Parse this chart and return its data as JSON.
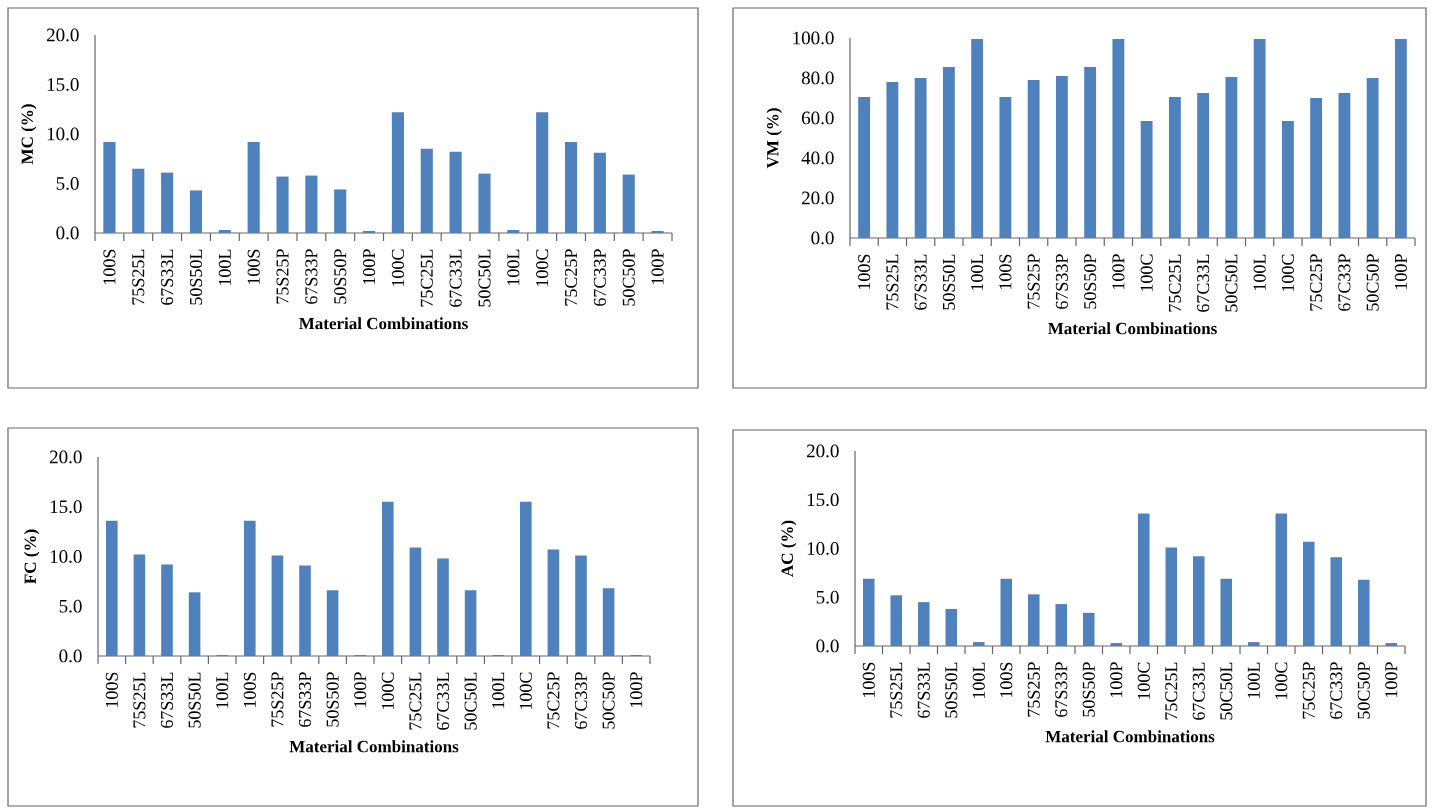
{
  "chart_data": [
    {
      "type": "bar",
      "xlabel": "Material Combinations",
      "ylabel": "MC (%)",
      "color": "#4f81bd",
      "categories": [
        "100S",
        "75S25L",
        "67S33L",
        "50S50L",
        "100L",
        "100S",
        "75S25P",
        "67S33P",
        "50S50P",
        "100P",
        "100C",
        "75C25L",
        "67C33L",
        "50C50L",
        "100L",
        "100C",
        "75C25P",
        "67C33P",
        "50C50P",
        "100P"
      ],
      "values": [
        9.2,
        6.5,
        6.1,
        4.3,
        0.3,
        9.2,
        5.7,
        5.8,
        4.4,
        0.2,
        12.2,
        8.5,
        8.2,
        6.0,
        0.3,
        12.2,
        9.2,
        8.1,
        5.9,
        0.2
      ],
      "ylim": [
        0,
        20
      ],
      "yticks": [
        {
          "value": 0,
          "label": "0.0"
        },
        {
          "value": 5,
          "label": "5.0"
        },
        {
          "value": 10,
          "label": "10.0"
        },
        {
          "value": 15,
          "label": "15.0"
        },
        {
          "value": 20,
          "label": "20.0"
        }
      ]
    },
    {
      "type": "bar",
      "xlabel": "Material Combinations",
      "ylabel": "VM (%)",
      "color": "#4f81bd",
      "categories": [
        "100S",
        "75S25L",
        "67S33L",
        "50S50L",
        "100L",
        "100S",
        "75S25P",
        "67S33P",
        "50S50P",
        "100P",
        "100C",
        "75C25L",
        "67C33L",
        "50C50L",
        "100L",
        "100C",
        "75C25P",
        "67C33P",
        "50C50P",
        "100P"
      ],
      "values": [
        70.5,
        78,
        80,
        85.5,
        99.5,
        70.5,
        79,
        81,
        85.5,
        99.5,
        58.5,
        70.5,
        72.5,
        80.5,
        99.5,
        58.5,
        70,
        72.5,
        80,
        99.5
      ],
      "ylim": [
        0,
        100
      ],
      "yticks": [
        {
          "value": 0,
          "label": "0.0"
        },
        {
          "value": 20,
          "label": "20.0"
        },
        {
          "value": 40,
          "label": "40.0"
        },
        {
          "value": 60,
          "label": "60.0"
        },
        {
          "value": 80,
          "label": "80.0"
        },
        {
          "value": 100,
          "label": "100.0"
        }
      ]
    },
    {
      "type": "bar",
      "xlabel": "Material Combinations",
      "ylabel": "FC (%)",
      "color": "#4f81bd",
      "categories": [
        "100S",
        "75S25L",
        "67S33L",
        "50S50L",
        "100L",
        "100S",
        "75S25P",
        "67S33P",
        "50S50P",
        "100P",
        "100C",
        "75C25L",
        "67C33L",
        "50C50L",
        "100L",
        "100C",
        "75C25P",
        "67C33P",
        "50C50P",
        "100P"
      ],
      "values": [
        13.6,
        10.2,
        9.2,
        6.4,
        0.1,
        13.6,
        10.1,
        9.1,
        6.6,
        0.1,
        15.5,
        10.9,
        9.8,
        6.6,
        0.1,
        15.5,
        10.7,
        10.1,
        6.8,
        0.1
      ],
      "ylim": [
        0,
        20
      ],
      "yticks": [
        {
          "value": 0,
          "label": "0.0"
        },
        {
          "value": 5,
          "label": "5.0"
        },
        {
          "value": 10,
          "label": "10.0"
        },
        {
          "value": 15,
          "label": "15.0"
        },
        {
          "value": 20,
          "label": "20.0"
        }
      ]
    },
    {
      "type": "bar",
      "xlabel": "Material Combinations",
      "ylabel": "AC (%)",
      "color": "#4f81bd",
      "categories": [
        "100S",
        "75S25L",
        "67S33L",
        "50S50L",
        "100L",
        "100S",
        "75S25P",
        "67S33P",
        "50S50P",
        "100P",
        "100C",
        "75C25L",
        "67C33L",
        "50C50L",
        "100L",
        "100C",
        "75C25P",
        "67C33P",
        "50C50P",
        "100P"
      ],
      "values": [
        6.9,
        5.2,
        4.5,
        3.8,
        0.4,
        6.9,
        5.3,
        4.3,
        3.4,
        0.3,
        13.6,
        10.1,
        9.2,
        6.9,
        0.4,
        13.6,
        10.7,
        9.1,
        6.8,
        0.3
      ],
      "ylim": [
        0,
        20
      ],
      "yticks": [
        {
          "value": 0,
          "label": "0.0"
        },
        {
          "value": 5,
          "label": "5.0"
        },
        {
          "value": 10,
          "label": "10.0"
        },
        {
          "value": 15,
          "label": "15.0"
        },
        {
          "value": 20,
          "label": "20.0"
        }
      ]
    }
  ]
}
